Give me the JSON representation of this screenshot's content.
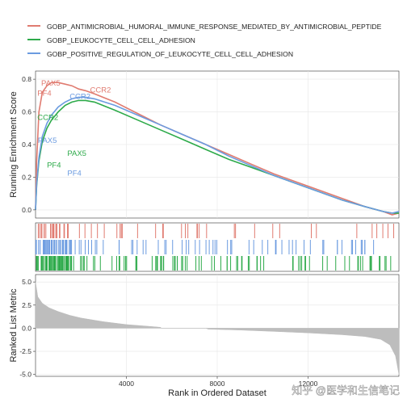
{
  "chart_data": {
    "type": "line",
    "xlabel": "Rank in Ordered Dataset",
    "ylabel_top": "Running Enrichment Score",
    "ylabel_bottom": "Ranked List Metric",
    "x_ticks": [
      4000,
      8000,
      12000
    ],
    "xlim": [
      0,
      16000
    ],
    "es_ylim": [
      -0.05,
      0.85
    ],
    "es_yticks": [
      0.0,
      0.2,
      0.4,
      0.6,
      0.8
    ],
    "es_ytick_labels": [
      "0.0",
      "0.2",
      "0.4",
      "0.6",
      "0.8"
    ],
    "metric_ylim": [
      -5.2,
      5.8
    ],
    "metric_yticks": [
      5.0,
      2.5,
      0.0,
      -2.5,
      -5.0
    ],
    "metric_ytick_labels": [
      "5.0",
      "2.5",
      "0.0",
      "-2.5",
      "-5.0"
    ],
    "grid": true,
    "legend_position": "top",
    "series": [
      {
        "name": "GOBP_ANTIMICROBIAL_HUMORAL_IMMUNE_RESPONSE_MEDIATED_BY_ANTIMICROBIAL_PEPTIDE",
        "color": "#E07B70",
        "x": [
          0,
          50,
          150,
          300,
          500,
          700,
          1000,
          1300,
          1600,
          1900,
          2200,
          2600,
          3500,
          4500,
          5500,
          6500,
          7500,
          8500,
          9500,
          10500,
          11500,
          12500,
          13500,
          14500,
          15300,
          15700,
          16000
        ],
        "y": [
          0.0,
          0.3,
          0.6,
          0.72,
          0.76,
          0.78,
          0.78,
          0.77,
          0.76,
          0.74,
          0.73,
          0.71,
          0.66,
          0.59,
          0.52,
          0.46,
          0.4,
          0.34,
          0.28,
          0.22,
          0.17,
          0.12,
          0.07,
          0.02,
          -0.01,
          -0.03,
          -0.02
        ]
      },
      {
        "name": "GOBP_LEUKOCYTE_CELL_CELL_ADHESION",
        "color": "#2DAA4A",
        "x": [
          0,
          50,
          150,
          300,
          500,
          700,
          1000,
          1300,
          1600,
          1900,
          2200,
          2600,
          3500,
          4500,
          5500,
          6500,
          7500,
          8500,
          9500,
          10500,
          11500,
          12500,
          13500,
          14500,
          15300,
          15700,
          16000
        ],
        "y": [
          0.0,
          0.15,
          0.3,
          0.42,
          0.5,
          0.55,
          0.6,
          0.64,
          0.66,
          0.67,
          0.67,
          0.66,
          0.61,
          0.55,
          0.49,
          0.43,
          0.37,
          0.31,
          0.26,
          0.21,
          0.16,
          0.11,
          0.06,
          0.02,
          -0.01,
          -0.02,
          -0.02
        ]
      },
      {
        "name": "GOBP_POSITIVE_REGULATION_OF_LEUKOCYTE_CELL_CELL_ADHESION",
        "color": "#6B9BE0",
        "x": [
          0,
          50,
          150,
          300,
          500,
          700,
          1000,
          1300,
          1600,
          1900,
          2200,
          2600,
          3500,
          4500,
          5500,
          6500,
          7500,
          8500,
          9500,
          10500,
          11500,
          12500,
          13500,
          14500,
          15300,
          15700,
          16000
        ],
        "y": [
          0.0,
          0.16,
          0.32,
          0.45,
          0.53,
          0.58,
          0.63,
          0.66,
          0.68,
          0.69,
          0.69,
          0.68,
          0.64,
          0.58,
          0.52,
          0.46,
          0.4,
          0.33,
          0.27,
          0.21,
          0.16,
          0.11,
          0.06,
          0.02,
          -0.01,
          -0.02,
          -0.01
        ]
      }
    ],
    "gene_labels": [
      {
        "text": "PAX5",
        "series": 0,
        "x": 250,
        "y": 0.76
      },
      {
        "text": "PF4",
        "series": 0,
        "x": 80,
        "y": 0.7
      },
      {
        "text": "CCR2",
        "series": 0,
        "x": 2400,
        "y": 0.72
      },
      {
        "text": "CCR2",
        "series": 1,
        "x": 80,
        "y": 0.55
      },
      {
        "text": "PAX5",
        "series": 1,
        "x": 1400,
        "y": 0.33
      },
      {
        "text": "PF4",
        "series": 1,
        "x": 500,
        "y": 0.26
      },
      {
        "text": "CCR2",
        "series": 2,
        "x": 1500,
        "y": 0.68
      },
      {
        "text": "PAX5",
        "series": 2,
        "x": 100,
        "y": 0.41
      },
      {
        "text": "PF4",
        "series": 2,
        "x": 1400,
        "y": 0.21
      }
    ],
    "hits": [
      {
        "series": 0,
        "count": 58
      },
      {
        "series": 2,
        "count": 110
      },
      {
        "series": 1,
        "count": 140
      }
    ],
    "ranked_metric": {
      "x": [
        0,
        100,
        300,
        600,
        1000,
        1500,
        2000,
        3000,
        4000,
        5000,
        5500,
        5550,
        7500,
        7600,
        9000,
        10500,
        12000,
        13500,
        14500,
        15200,
        15600,
        15850,
        16000
      ],
      "y": [
        5.0,
        3.4,
        2.7,
        2.2,
        1.8,
        1.4,
        1.1,
        0.7,
        0.4,
        0.2,
        0.1,
        0.0,
        0.0,
        -0.1,
        -0.2,
        -0.35,
        -0.5,
        -0.7,
        -0.9,
        -1.2,
        -1.8,
        -3.0,
        -5.0
      ]
    }
  },
  "watermark": {
    "text": "知乎 @医学和生信笔记"
  }
}
